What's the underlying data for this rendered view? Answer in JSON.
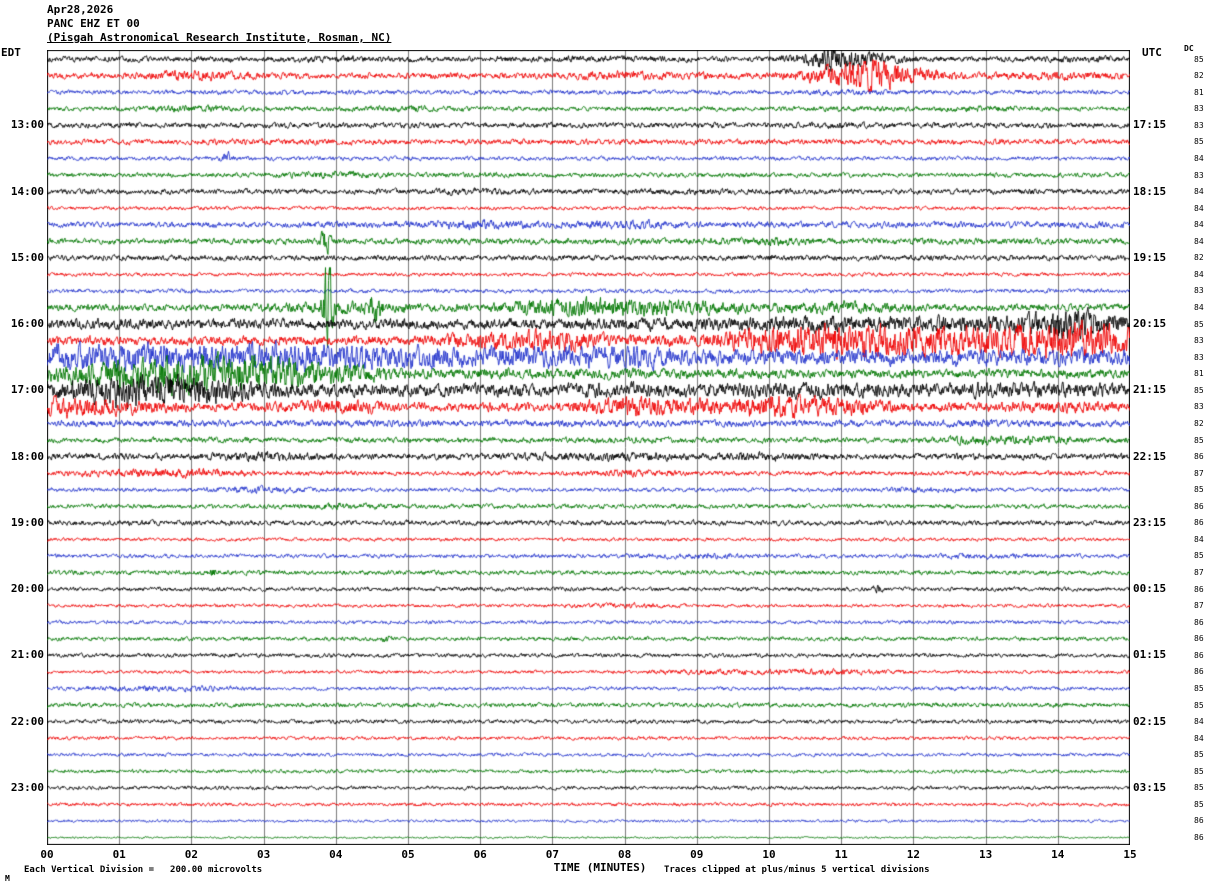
{
  "header": {
    "date": "Apr28,2026",
    "station": "PANC EHZ ET 00",
    "institute": "(Pisgah Astronomical Research Institute, Rosman, NC)"
  },
  "axes": {
    "left": "EDT",
    "right": "UTC",
    "dc": "DC"
  },
  "footer": {
    "watermark": "M",
    "scale_prefix": "Each Vertical Division =",
    "scale_value": "200.00 microvolts",
    "clip_note": "Traces clipped at plus/minus 5 vertical divisions"
  },
  "chart_data": {
    "type": "line",
    "subtype": "seismogram-helicorder",
    "title": "PANC EHZ ET 00 — Apr28,2026",
    "x_title": "TIME (MINUTES)",
    "x_ticks": [
      "00",
      "01",
      "02",
      "03",
      "04",
      "05",
      "06",
      "07",
      "08",
      "09",
      "10",
      "11",
      "12",
      "13",
      "14",
      "15"
    ],
    "x_range": [
      0,
      15
    ],
    "minutes_per_line": 15,
    "lines_per_hour": 4,
    "clip_divisions": 5,
    "microvolts_per_division": 200.0,
    "grid": "vertical-minute-lines",
    "trace_colors": {
      "k": "#000000",
      "r": "#ee0000",
      "b": "#2233cc",
      "g": "#007700"
    },
    "traces": [
      {
        "c": "k",
        "d": 85,
        "a": [
          3,
          2.5,
          2.5,
          2.5,
          3,
          2.5,
          2.5,
          3,
          3,
          2.5,
          2.5,
          7,
          3,
          2.5,
          3,
          3
        ],
        "sp": [
          [
            10.9,
            5,
            0.3
          ]
        ]
      },
      {
        "c": "r",
        "d": 82,
        "a": [
          2.5,
          2.5,
          5,
          3,
          2.5,
          2.5,
          3,
          2.5,
          4.5,
          3,
          3,
          8,
          5,
          3,
          4,
          3
        ],
        "sp": [
          [
            11.5,
            8,
            0.5
          ]
        ]
      },
      {
        "c": "b",
        "d": 81,
        "a": [
          1.8,
          2,
          2,
          2.2,
          2,
          2,
          2,
          2,
          2,
          2,
          2,
          2.8,
          2,
          2,
          2,
          2
        ]
      },
      {
        "c": "g",
        "d": 83,
        "a": [
          2,
          2,
          3.5,
          2,
          2,
          3.2,
          2,
          2,
          2,
          2,
          2,
          2.4,
          2,
          3.2,
          2,
          2
        ]
      },
      {
        "c": "k",
        "d": 83,
        "edt": "13:00",
        "utc": "17:15",
        "a": [
          2.4,
          2.4,
          2.4,
          2.4,
          2.4,
          2.4,
          2.4,
          2.4,
          2.4,
          2.4,
          2.4,
          2.8,
          2.4,
          2.4,
          2.4,
          2.4
        ]
      },
      {
        "c": "r",
        "d": 85,
        "a": [
          2.4,
          2.4,
          2.4,
          2.8,
          2.4,
          2.4,
          2.4,
          2.4,
          2.4,
          2.4,
          2.4,
          2.4,
          2.4,
          2.4,
          2.4,
          2.4
        ]
      },
      {
        "c": "b",
        "d": 84,
        "a": [
          1.8,
          1.8,
          1.8,
          1.8,
          1.8,
          1.8,
          1.8,
          1.8,
          1.8,
          1.8,
          1.8,
          1.8,
          1.8,
          1.8,
          1.8,
          1.8
        ],
        "sp": [
          [
            2.5,
            4,
            0.08
          ]
        ]
      },
      {
        "c": "g",
        "d": 83,
        "a": [
          2,
          2,
          2,
          2,
          3.8,
          2,
          2.4,
          2,
          2,
          2,
          2,
          2,
          2,
          2,
          2,
          2
        ]
      },
      {
        "c": "k",
        "d": 84,
        "edt": "14:00",
        "utc": "18:15",
        "a": [
          2.4,
          2.4,
          2.4,
          2.4,
          2.4,
          2.4,
          3.2,
          2.4,
          2.4,
          2.8,
          2.4,
          2.4,
          2.4,
          2.4,
          2.4,
          2.4
        ]
      },
      {
        "c": "r",
        "d": 84,
        "a": [
          1.6,
          1.6,
          1.6,
          1.6,
          1.6,
          1.6,
          1.6,
          1.6,
          1.6,
          1.6,
          1.6,
          1.6,
          1.6,
          1.6,
          1.6,
          1.6
        ]
      },
      {
        "c": "b",
        "d": 84,
        "a": [
          2.4,
          2.4,
          2.4,
          2.4,
          2.8,
          2.8,
          4.5,
          2.8,
          4.5,
          2.8,
          2.8,
          2.8,
          2.8,
          2.8,
          2.8,
          2.8
        ]
      },
      {
        "c": "g",
        "d": 84,
        "a": [
          2.4,
          2.4,
          2.4,
          2.8,
          2.8,
          2.8,
          2.8,
          2.8,
          2.8,
          2.8,
          4,
          2.8,
          2.8,
          2.8,
          2.8,
          2.8
        ],
        "sp": [
          [
            3.85,
            10,
            0.07
          ]
        ]
      },
      {
        "c": "k",
        "d": 82,
        "edt": "15:00",
        "utc": "19:15",
        "a": [
          2.4,
          2.4,
          2.4,
          2.4,
          2.4,
          2.4,
          2.4,
          2.4,
          2.4,
          2.4,
          2.8,
          2.4,
          2.4,
          2.4,
          2.4,
          2.4
        ]
      },
      {
        "c": "r",
        "d": 84,
        "a": [
          1.6,
          1.6,
          1.6,
          1.6,
          1.6,
          1.6,
          1.6,
          1.6,
          1.6,
          1.6,
          1.6,
          1.6,
          1.6,
          1.6,
          1.6,
          1.6
        ]
      },
      {
        "c": "b",
        "d": 83,
        "a": [
          1.8,
          1.8,
          1.8,
          1.8,
          1.8,
          1.8,
          1.8,
          1.8,
          1.8,
          1.8,
          1.8,
          1.8,
          1.8,
          1.8,
          1.8,
          1.8
        ]
      },
      {
        "c": "g",
        "d": 84,
        "a": [
          3,
          3,
          3,
          3.5,
          6,
          4,
          3.5,
          8,
          9,
          7,
          4,
          6,
          3.5,
          3,
          3,
          3
        ],
        "sp": [
          [
            3.9,
            40,
            0.07
          ],
          [
            4.55,
            13,
            0.07
          ]
        ]
      },
      {
        "c": "k",
        "d": 85,
        "edt": "16:00",
        "utc": "20:15",
        "a": [
          4.5,
          4.5,
          4.5,
          4.5,
          4.5,
          4.5,
          4.5,
          4.5,
          5.5,
          5.5,
          7,
          7,
          7,
          7,
          9,
          7
        ],
        "sp": [
          [
            14.2,
            6,
            0.4
          ]
        ]
      },
      {
        "c": "r",
        "d": 83,
        "a": [
          4,
          4,
          4,
          4,
          4,
          4,
          8,
          10,
          5,
          5,
          13,
          16,
          14,
          13,
          17,
          13
        ]
      },
      {
        "c": "b",
        "d": 83,
        "a": [
          11,
          13,
          11,
          13,
          11,
          11,
          9,
          9,
          11,
          7,
          7,
          7,
          7,
          7,
          7,
          7
        ]
      },
      {
        "c": "g",
        "d": 81,
        "a": [
          7,
          13,
          17,
          15,
          9,
          4.5,
          4.5,
          4.5,
          4.5,
          4,
          4,
          4,
          4,
          4,
          4,
          4
        ]
      },
      {
        "c": "k",
        "d": 85,
        "edt": "17:00",
        "utc": "21:15",
        "a": [
          6,
          16,
          14,
          7,
          5.5,
          5.5,
          5.5,
          5.5,
          7,
          5.5,
          7,
          7,
          5.5,
          7,
          7,
          5.5
        ]
      },
      {
        "c": "r",
        "d": 83,
        "a": [
          10,
          7,
          4,
          4,
          7,
          4,
          4,
          4,
          9,
          7,
          10,
          9,
          4,
          4,
          5.5,
          4
        ]
      },
      {
        "c": "b",
        "d": 82,
        "a": [
          3,
          3,
          3,
          3,
          3,
          3,
          3,
          3,
          3,
          3,
          3,
          3,
          3,
          3.6,
          3,
          3
        ]
      },
      {
        "c": "g",
        "d": 85,
        "a": [
          2.4,
          2.4,
          2.4,
          2.4,
          2.4,
          2.4,
          2.4,
          2.4,
          2.8,
          2.8,
          2.4,
          2.4,
          2.4,
          4.5,
          3.6,
          2.4
        ]
      },
      {
        "c": "k",
        "d": 86,
        "edt": "18:00",
        "utc": "22:15",
        "a": [
          2.8,
          2.8,
          2.8,
          4.5,
          2.8,
          2.8,
          2.8,
          3.6,
          4.5,
          2.8,
          4.5,
          2.8,
          2.8,
          2.8,
          2.8,
          2.8
        ]
      },
      {
        "c": "r",
        "d": 87,
        "a": [
          2,
          3.6,
          4.5,
          2,
          2,
          2,
          2,
          2,
          3.6,
          2,
          2,
          2,
          2,
          2,
          2,
          2
        ]
      },
      {
        "c": "b",
        "d": 85,
        "a": [
          1.8,
          1.8,
          1.8,
          3.2,
          1.8,
          1.8,
          1.8,
          1.8,
          1.8,
          1.8,
          1.8,
          1.8,
          2.8,
          1.8,
          1.8,
          1.8
        ]
      },
      {
        "c": "g",
        "d": 86,
        "a": [
          2,
          2,
          2,
          2,
          3.2,
          2,
          2,
          2,
          2,
          2,
          2,
          2,
          2,
          2,
          2,
          2
        ]
      },
      {
        "c": "k",
        "d": 86,
        "edt": "19:00",
        "utc": "23:15",
        "a": [
          2.2,
          2.2,
          2.2,
          2.2,
          2.2,
          2.2,
          2.2,
          2.2,
          2.2,
          2.2,
          2.2,
          2.2,
          2.2,
          2.2,
          2.2,
          2.2
        ]
      },
      {
        "c": "r",
        "d": 84,
        "a": [
          1.5,
          1.5,
          1.5,
          1.5,
          1.5,
          1.5,
          1.5,
          1.5,
          1.5,
          1.5,
          1.5,
          1.5,
          1.5,
          1.5,
          1.5,
          1.5
        ]
      },
      {
        "c": "b",
        "d": 85,
        "a": [
          1.8,
          1.8,
          1.8,
          1.8,
          1.8,
          1.8,
          1.8,
          1.8,
          1.8,
          2.8,
          1.8,
          1.8,
          1.8,
          2.8,
          1.8,
          1.8
        ]
      },
      {
        "c": "g",
        "d": 87,
        "a": [
          2,
          2,
          2,
          2,
          2,
          2,
          2,
          2,
          2,
          2,
          2,
          2,
          2,
          2,
          2,
          2
        ],
        "sp": [
          [
            2.3,
            4,
            0.06
          ]
        ]
      },
      {
        "c": "k",
        "d": 86,
        "edt": "20:00",
        "utc": "00:15",
        "a": [
          1.8,
          1.8,
          1.8,
          1.8,
          1.8,
          1.8,
          1.8,
          1.8,
          1.8,
          1.8,
          1.8,
          1.8,
          1.8,
          1.8,
          1.8,
          1.8
        ],
        "sp": [
          [
            11.5,
            3,
            0.05
          ]
        ]
      },
      {
        "c": "r",
        "d": 87,
        "a": [
          1.5,
          1.5,
          1.5,
          1.5,
          1.5,
          1.5,
          1.5,
          1.5,
          2.4,
          1.5,
          1.5,
          1.5,
          1.5,
          1.5,
          1.5,
          1.5
        ]
      },
      {
        "c": "b",
        "d": 86,
        "a": [
          1.6,
          1.6,
          1.6,
          1.6,
          1.6,
          1.6,
          1.6,
          1.6,
          1.6,
          1.6,
          1.6,
          1.6,
          1.6,
          1.6,
          1.6,
          1.6
        ]
      },
      {
        "c": "g",
        "d": 86,
        "a": [
          1.8,
          1.8,
          1.8,
          1.8,
          1.8,
          1.8,
          1.8,
          1.8,
          1.8,
          1.8,
          1.8,
          1.8,
          1.8,
          1.8,
          1.8,
          1.8
        ],
        "sp": [
          [
            4.7,
            3,
            0.05
          ]
        ]
      },
      {
        "c": "k",
        "d": 86,
        "edt": "21:00",
        "utc": "01:15",
        "a": [
          1.8,
          1.8,
          1.8,
          1.8,
          1.8,
          1.8,
          1.8,
          1.8,
          1.8,
          1.8,
          1.8,
          1.8,
          1.8,
          1.8,
          1.8,
          1.8
        ]
      },
      {
        "c": "r",
        "d": 86,
        "a": [
          1.5,
          1.5,
          1.5,
          1.5,
          1.5,
          1.5,
          1.5,
          1.5,
          1.5,
          2.6,
          2.6,
          2.6,
          1.5,
          1.5,
          1.5,
          1.5
        ]
      },
      {
        "c": "b",
        "d": 85,
        "a": [
          1.6,
          2.4,
          2.8,
          1.6,
          1.6,
          1.6,
          1.6,
          1.6,
          1.6,
          1.6,
          1.6,
          1.6,
          1.6,
          2,
          1.6,
          1.6
        ]
      },
      {
        "c": "g",
        "d": 85,
        "a": [
          2,
          2,
          2,
          2,
          2,
          2,
          2,
          2,
          2,
          2,
          2,
          2,
          2,
          2,
          2,
          2
        ]
      },
      {
        "c": "k",
        "d": 84,
        "edt": "22:00",
        "utc": "02:15",
        "a": [
          1.8,
          1.8,
          1.8,
          1.8,
          1.8,
          1.8,
          1.8,
          1.8,
          1.8,
          1.8,
          1.8,
          1.8,
          1.8,
          1.8,
          1.8,
          1.8
        ]
      },
      {
        "c": "r",
        "d": 84,
        "a": [
          1.5,
          1.5,
          1.5,
          1.5,
          1.5,
          1.5,
          1.5,
          1.5,
          1.5,
          1.5,
          1.5,
          1.5,
          1.5,
          1.5,
          1.5,
          1.5
        ]
      },
      {
        "c": "b",
        "d": 85,
        "a": [
          1.5,
          1.5,
          1.5,
          1.5,
          1.5,
          1.5,
          1.5,
          1.5,
          1.5,
          1.5,
          1.5,
          1.5,
          1.5,
          1.5,
          1.5,
          1.5
        ]
      },
      {
        "c": "g",
        "d": 85,
        "a": [
          1.6,
          1.6,
          1.6,
          1.6,
          1.6,
          1.6,
          1.6,
          1.6,
          1.6,
          1.6,
          1.6,
          1.6,
          1.6,
          1.6,
          1.6,
          1.6
        ]
      },
      {
        "c": "k",
        "d": 85,
        "edt": "23:00",
        "utc": "03:15",
        "a": [
          1.6,
          1.6,
          1.6,
          1.6,
          1.6,
          1.6,
          1.6,
          1.6,
          1.6,
          1.6,
          1.6,
          1.6,
          1.6,
          1.6,
          1.6,
          1.6
        ]
      },
      {
        "c": "r",
        "d": 85,
        "a": [
          1.5,
          1.5,
          1.5,
          1.5,
          1.5,
          1.5,
          1.5,
          1.5,
          1.5,
          1.5,
          1.5,
          1.5,
          1.5,
          1.5,
          1.5,
          1.5
        ]
      },
      {
        "c": "b",
        "d": 86,
        "a": [
          1.2,
          1.2,
          1.2,
          1.2,
          1.2,
          1.2,
          1.2,
          1.2,
          1.2,
          1.2,
          1.2,
          1.2,
          1.2,
          1.2,
          1.2,
          1.2
        ]
      },
      {
        "c": "g",
        "d": 86,
        "a": [
          0.8,
          0.8,
          0.8,
          0.8,
          0.8,
          0.8,
          0.8,
          0.8,
          0.8,
          0.8,
          0.8,
          0.8,
          0.8,
          0.8,
          0.8,
          0.8
        ]
      }
    ]
  }
}
